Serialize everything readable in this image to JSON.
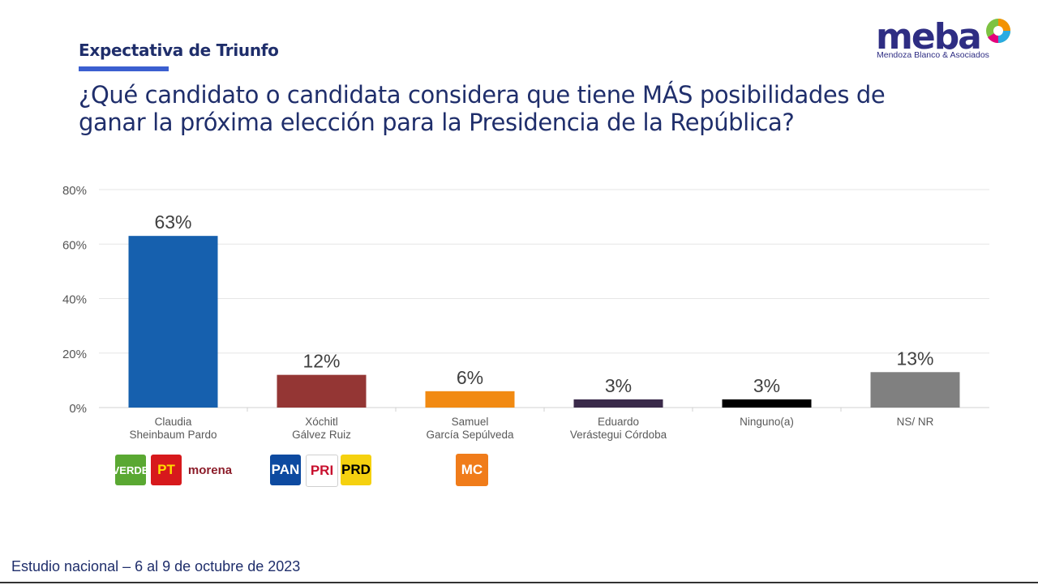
{
  "header": {
    "section_title": "Expectativa de Triunfo",
    "question": "¿Qué candidato o candidata considera que tiene MÁS posibilidades de ganar la próxima elección para la Presidencia de la República?"
  },
  "logo": {
    "word": "meba",
    "subtitle": "Mendoza Blanco & Asociados"
  },
  "footer": {
    "text": "Estudio nacional – 6 al 9 de octubre de 2023"
  },
  "chart_data": {
    "type": "bar",
    "categories": [
      "Claudia\nSheinbaum Pardo",
      "Xóchitl\nGálvez Ruiz",
      "Samuel\nGarcía Sepúlveda",
      "Eduardo\nVerástegui Córdoba",
      "Ninguno(a)",
      "NS/ NR"
    ],
    "values": [
      63,
      12,
      6,
      3,
      3,
      13
    ],
    "value_labels": [
      "63%",
      "12%",
      "6%",
      "3%",
      "3%",
      "13%"
    ],
    "colors": [
      "#1660ae",
      "#943634",
      "#f18a12",
      "#3a2a4a",
      "#000000",
      "#808080"
    ],
    "ylim": [
      0,
      80
    ],
    "yticks": [
      "0%",
      "20%",
      "40%",
      "60%",
      "80%"
    ],
    "ytick_values": [
      0,
      20,
      40,
      60,
      80
    ],
    "grid": true,
    "title": "",
    "xlabel": "",
    "ylabel": ""
  },
  "party_logos": {
    "sheinbaum": [
      {
        "label": "VERDE",
        "color": "#5aa832",
        "text_color": "#ffffff"
      },
      {
        "label": "PT",
        "color": "#d7191c",
        "text_color": "#ffde00"
      },
      {
        "label": "morena",
        "color": "#ffffff",
        "text_color": "#8c1d2a"
      }
    ],
    "galvez": [
      {
        "label": "PAN",
        "color": "#0d4aa0",
        "text_color": "#ffffff"
      },
      {
        "label": "PRI",
        "color": "#ffffff",
        "text_color": "#c8102e"
      },
      {
        "label": "PRD",
        "color": "#f5d10f",
        "text_color": "#000000"
      }
    ],
    "garcia": [
      {
        "label": "MC",
        "color": "#f07c1a",
        "text_color": "#ffffff"
      }
    ]
  }
}
